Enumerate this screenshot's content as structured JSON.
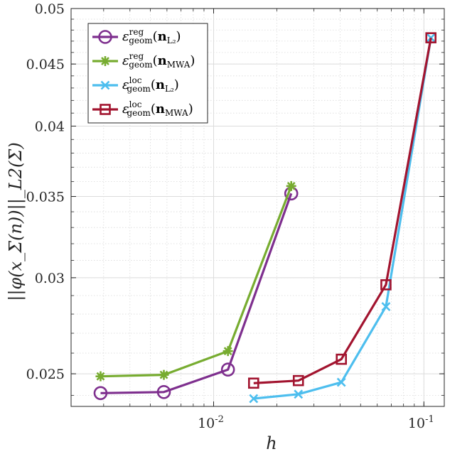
{
  "chart_data": {
    "type": "line",
    "xscale": "log",
    "yscale": "log",
    "xlabel": "h",
    "ylabel": "||φ(x_Σ(n))||_L2(Σ)",
    "xlim": [
      0.0021,
      0.125
    ],
    "ylim": [
      0.0235,
      0.05
    ],
    "grid": true,
    "legend_position": "top-left",
    "y_ticks": [
      {
        "value": 0.025,
        "label": "0.025"
      },
      {
        "value": 0.03,
        "label": "0.03"
      },
      {
        "value": 0.035,
        "label": "0.035"
      },
      {
        "value": 0.04,
        "label": "0.04"
      },
      {
        "value": 0.045,
        "label": "0.045"
      },
      {
        "value": 0.05,
        "label": "0.05"
      }
    ],
    "x_ticks": [
      {
        "value": 0.01,
        "base": "10",
        "exp": "-2"
      },
      {
        "value": 0.1,
        "base": "10",
        "exp": "-1"
      }
    ],
    "series": [
      {
        "name": "ε_geom^reg(n_L2)",
        "eps": "ε",
        "sup": "reg",
        "sub": "geom",
        "n_sub": "L₂",
        "color": "#7e2f8e",
        "marker": "circle",
        "x": [
          0.0029,
          0.0058,
          0.0117,
          0.0234
        ],
        "y": [
          0.0241,
          0.02415,
          0.0252,
          0.0352
        ]
      },
      {
        "name": "ε_geom^reg(n_MWA)",
        "eps": "ε",
        "sup": "reg",
        "sub": "geom",
        "n_sub": "MWA",
        "color": "#77ac30",
        "marker": "asterisk",
        "x": [
          0.0029,
          0.0058,
          0.0117,
          0.0234
        ],
        "y": [
          0.02488,
          0.02495,
          0.0261,
          0.0357
        ]
      },
      {
        "name": "ε_geom^loc(n_L2)",
        "eps": "ε",
        "sup": "loc",
        "sub": "geom",
        "n_sub": "L₂",
        "color": "#4dbeee",
        "marker": "cross",
        "x": [
          0.0155,
          0.0253,
          0.0405,
          0.066,
          0.108
        ],
        "y": [
          0.02385,
          0.02405,
          0.0246,
          0.0284,
          0.0473
        ]
      },
      {
        "name": "ε_geom^loc(n_MWA)",
        "eps": "ε",
        "sup": "loc",
        "sub": "geom",
        "n_sub": "MWA",
        "color": "#a2142f",
        "marker": "square",
        "x": [
          0.0155,
          0.0253,
          0.0405,
          0.066,
          0.108
        ],
        "y": [
          0.02456,
          0.02468,
          0.0257,
          0.0296,
          0.0473
        ]
      }
    ]
  }
}
